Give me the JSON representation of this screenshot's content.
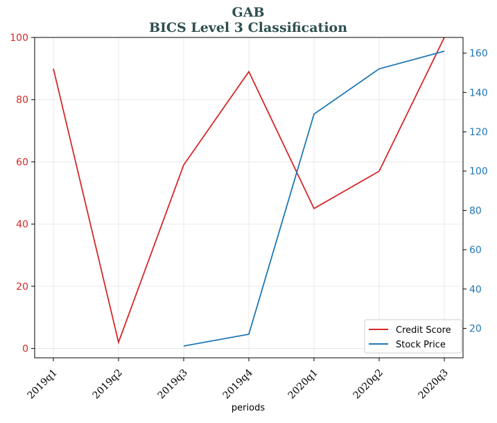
{
  "colors": {
    "credit": "#d62728",
    "stock": "#1f77b4",
    "title": "#2f4f4f",
    "grid": "#e5e5e5",
    "axis": "#000000"
  },
  "chart_data": {
    "type": "line",
    "title": "GAB",
    "subtitle": "BICS Level 3 Classification",
    "xlabel": "periods",
    "categories": [
      "2019q1",
      "2019q2",
      "2019q3",
      "2019q4",
      "2020q1",
      "2020q2",
      "2020q3"
    ],
    "series": [
      {
        "name": "Credit Score",
        "axis": "left",
        "color": "#d62728",
        "values": [
          90,
          2,
          59,
          89,
          45,
          57,
          100
        ]
      },
      {
        "name": "Stock Price",
        "axis": "right",
        "color": "#1f77b4",
        "values": [
          null,
          null,
          11,
          17,
          129,
          152,
          161
        ]
      }
    ],
    "y_left": {
      "ylim": [
        -3,
        100
      ],
      "ticks": [
        0,
        20,
        40,
        60,
        80,
        100
      ],
      "tick_color": "#d62728"
    },
    "y_right": {
      "ylim": [
        5,
        168
      ],
      "ticks": [
        20,
        40,
        60,
        80,
        100,
        120,
        140,
        160
      ],
      "tick_color": "#1f77b4"
    },
    "grid": true,
    "legend": {
      "placement": "lower-right",
      "entries": [
        "Credit Score",
        "Stock Price"
      ]
    }
  }
}
